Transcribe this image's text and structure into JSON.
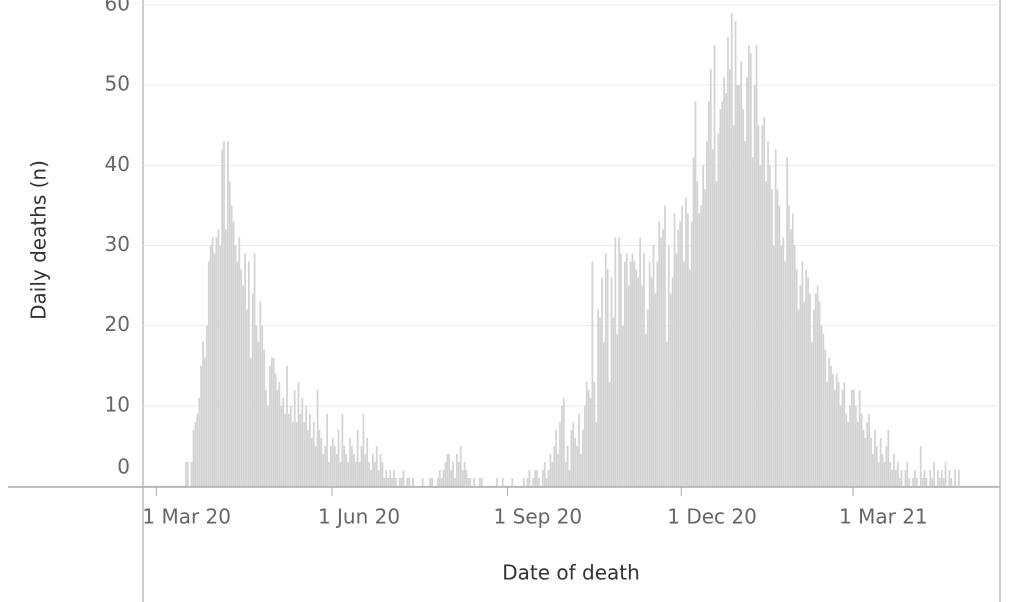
{
  "chart_data": {
    "type": "bar",
    "x_label": "Date of death",
    "y_label": "Daily deaths (n)",
    "color": "#d3d3d3",
    "grid": true,
    "xlim": [
      "2020-02-23",
      "2021-05-17"
    ],
    "xticks": [
      {
        "value": "2020-03-01",
        "label": "1 Mar 20"
      },
      {
        "value": "2020-06-01",
        "label": "1 Jun 20"
      },
      {
        "value": "2020-09-01",
        "label": "1 Sep 20"
      },
      {
        "value": "2020-12-01",
        "label": "1 Dec 20"
      },
      {
        "value": "2021-03-01",
        "label": "1 Mar 21"
      }
    ],
    "ylim": [
      0,
      60
    ],
    "yticks": [
      0,
      10,
      20,
      30,
      40,
      50,
      60
    ],
    "x": [
      "2020-03-16",
      "2020-03-17",
      "2020-03-18",
      "2020-03-19",
      "2020-03-20",
      "2020-03-21",
      "2020-03-22",
      "2020-03-23",
      "2020-03-24",
      "2020-03-25",
      "2020-03-26",
      "2020-03-27",
      "2020-03-28",
      "2020-03-29",
      "2020-03-30",
      "2020-03-31",
      "2020-04-01",
      "2020-04-02",
      "2020-04-03",
      "2020-04-04",
      "2020-04-05",
      "2020-04-06",
      "2020-04-07",
      "2020-04-08",
      "2020-04-09",
      "2020-04-10",
      "2020-04-11",
      "2020-04-12",
      "2020-04-13",
      "2020-04-14",
      "2020-04-15",
      "2020-04-16",
      "2020-04-17",
      "2020-04-18",
      "2020-04-19",
      "2020-04-20",
      "2020-04-21",
      "2020-04-22",
      "2020-04-23",
      "2020-04-24",
      "2020-04-25",
      "2020-04-26",
      "2020-04-27",
      "2020-04-28",
      "2020-04-29",
      "2020-04-30",
      "2020-05-01",
      "2020-05-02",
      "2020-05-03",
      "2020-05-04",
      "2020-05-05",
      "2020-05-06",
      "2020-05-07",
      "2020-05-08",
      "2020-05-09",
      "2020-05-10",
      "2020-05-11",
      "2020-05-12",
      "2020-05-13",
      "2020-05-14",
      "2020-05-15",
      "2020-05-16",
      "2020-05-17",
      "2020-05-18",
      "2020-05-19",
      "2020-05-20",
      "2020-05-21",
      "2020-05-22",
      "2020-05-23",
      "2020-05-24",
      "2020-05-25",
      "2020-05-26",
      "2020-05-27",
      "2020-05-28",
      "2020-05-29",
      "2020-05-30",
      "2020-05-31",
      "2020-06-01",
      "2020-06-02",
      "2020-06-03",
      "2020-06-04",
      "2020-06-05",
      "2020-06-06",
      "2020-06-07",
      "2020-06-08",
      "2020-06-09",
      "2020-06-10",
      "2020-06-11",
      "2020-06-12",
      "2020-06-13",
      "2020-06-14",
      "2020-06-15",
      "2020-06-16",
      "2020-06-17",
      "2020-06-18",
      "2020-06-19",
      "2020-06-20",
      "2020-06-21",
      "2020-06-22",
      "2020-06-23",
      "2020-06-24",
      "2020-06-25",
      "2020-06-26",
      "2020-06-27",
      "2020-06-28",
      "2020-06-29",
      "2020-06-30",
      "2020-07-01",
      "2020-07-02",
      "2020-07-03",
      "2020-07-04",
      "2020-07-05",
      "2020-07-06",
      "2020-07-07",
      "2020-07-08",
      "2020-07-09",
      "2020-07-10",
      "2020-07-11",
      "2020-07-12",
      "2020-07-13",
      "2020-07-14",
      "2020-07-15",
      "2020-07-16",
      "2020-07-17",
      "2020-07-18",
      "2020-07-19",
      "2020-07-20",
      "2020-07-21",
      "2020-07-22",
      "2020-07-23",
      "2020-07-24",
      "2020-07-25",
      "2020-07-26",
      "2020-07-27",
      "2020-07-28",
      "2020-07-29",
      "2020-07-30",
      "2020-07-31",
      "2020-08-01",
      "2020-08-02",
      "2020-08-03",
      "2020-08-04",
      "2020-08-05",
      "2020-08-06",
      "2020-08-07",
      "2020-08-08",
      "2020-08-09",
      "2020-08-10",
      "2020-08-11",
      "2020-08-12",
      "2020-08-13",
      "2020-08-14",
      "2020-08-15",
      "2020-08-16",
      "2020-08-17",
      "2020-08-18",
      "2020-08-19",
      "2020-08-20",
      "2020-08-21",
      "2020-08-22",
      "2020-08-23",
      "2020-08-24",
      "2020-08-25",
      "2020-08-26",
      "2020-08-27",
      "2020-08-28",
      "2020-08-29",
      "2020-08-30",
      "2020-08-31",
      "2020-09-01",
      "2020-09-02",
      "2020-09-03",
      "2020-09-04",
      "2020-09-05",
      "2020-09-06",
      "2020-09-07",
      "2020-09-08",
      "2020-09-09",
      "2020-09-10",
      "2020-09-11",
      "2020-09-12",
      "2020-09-13",
      "2020-09-14",
      "2020-09-15",
      "2020-09-16",
      "2020-09-17",
      "2020-09-18",
      "2020-09-19",
      "2020-09-20",
      "2020-09-21",
      "2020-09-22",
      "2020-09-23",
      "2020-09-24",
      "2020-09-25",
      "2020-09-26",
      "2020-09-27",
      "2020-09-28",
      "2020-09-29",
      "2020-09-30",
      "2020-10-01",
      "2020-10-02",
      "2020-10-03",
      "2020-10-04",
      "2020-10-05",
      "2020-10-06",
      "2020-10-07",
      "2020-10-08",
      "2020-10-09",
      "2020-10-10",
      "2020-10-11",
      "2020-10-12",
      "2020-10-13",
      "2020-10-14",
      "2020-10-15",
      "2020-10-16",
      "2020-10-17",
      "2020-10-18",
      "2020-10-19",
      "2020-10-20",
      "2020-10-21",
      "2020-10-22",
      "2020-10-23",
      "2020-10-24",
      "2020-10-25",
      "2020-10-26",
      "2020-10-27",
      "2020-10-28",
      "2020-10-29",
      "2020-10-30",
      "2020-10-31",
      "2020-11-01",
      "2020-11-02",
      "2020-11-03",
      "2020-11-04",
      "2020-11-05",
      "2020-11-06",
      "2020-11-07",
      "2020-11-08",
      "2020-11-09",
      "2020-11-10",
      "2020-11-11",
      "2020-11-12",
      "2020-11-13",
      "2020-11-14",
      "2020-11-15",
      "2020-11-16",
      "2020-11-17",
      "2020-11-18",
      "2020-11-19",
      "2020-11-20",
      "2020-11-21",
      "2020-11-22",
      "2020-11-23",
      "2020-11-24",
      "2020-11-25",
      "2020-11-26",
      "2020-11-27",
      "2020-11-28",
      "2020-11-29",
      "2020-11-30",
      "2020-12-01",
      "2020-12-02",
      "2020-12-03",
      "2020-12-04",
      "2020-12-05",
      "2020-12-06",
      "2020-12-07",
      "2020-12-08",
      "2020-12-09",
      "2020-12-10",
      "2020-12-11",
      "2020-12-12",
      "2020-12-13",
      "2020-12-14",
      "2020-12-15",
      "2020-12-16",
      "2020-12-17",
      "2020-12-18",
      "2020-12-19",
      "2020-12-20",
      "2020-12-21",
      "2020-12-22",
      "2020-12-23",
      "2020-12-24",
      "2020-12-25",
      "2020-12-26",
      "2020-12-27",
      "2020-12-28",
      "2020-12-29",
      "2020-12-30",
      "2020-12-31",
      "2021-01-01",
      "2021-01-02",
      "2021-01-03",
      "2021-01-04",
      "2021-01-05",
      "2021-01-06",
      "2021-01-07",
      "2021-01-08",
      "2021-01-09",
      "2021-01-10",
      "2021-01-11",
      "2021-01-12",
      "2021-01-13",
      "2021-01-14",
      "2021-01-15",
      "2021-01-16",
      "2021-01-17",
      "2021-01-18",
      "2021-01-19",
      "2021-01-20",
      "2021-01-21",
      "2021-01-22",
      "2021-01-23",
      "2021-01-24",
      "2021-01-25",
      "2021-01-26",
      "2021-01-27",
      "2021-01-28",
      "2021-01-29",
      "2021-01-30",
      "2021-01-31",
      "2021-02-01",
      "2021-02-02",
      "2021-02-03",
      "2021-02-04",
      "2021-02-05",
      "2021-02-06",
      "2021-02-07",
      "2021-02-08",
      "2021-02-09",
      "2021-02-10",
      "2021-02-11",
      "2021-02-12",
      "2021-02-13",
      "2021-02-14",
      "2021-02-15",
      "2021-02-16",
      "2021-02-17",
      "2021-02-18",
      "2021-02-19",
      "2021-02-20",
      "2021-02-21",
      "2021-02-22",
      "2021-02-23",
      "2021-02-24",
      "2021-02-25",
      "2021-02-26",
      "2021-02-27",
      "2021-02-28",
      "2021-03-01",
      "2021-03-02",
      "2021-03-03",
      "2021-03-04",
      "2021-03-05",
      "2021-03-06",
      "2021-03-07",
      "2021-03-08",
      "2021-03-09",
      "2021-03-10",
      "2021-03-11",
      "2021-03-12",
      "2021-03-13",
      "2021-03-14",
      "2021-03-15",
      "2021-03-16",
      "2021-03-17",
      "2021-03-18",
      "2021-03-19",
      "2021-03-20",
      "2021-03-21",
      "2021-03-22",
      "2021-03-23",
      "2021-03-24",
      "2021-03-25",
      "2021-03-26",
      "2021-03-27",
      "2021-03-28",
      "2021-03-29",
      "2021-03-30",
      "2021-03-31",
      "2021-04-01",
      "2021-04-02",
      "2021-04-03",
      "2021-04-04",
      "2021-04-05",
      "2021-04-06",
      "2021-04-07",
      "2021-04-08",
      "2021-04-09",
      "2021-04-10",
      "2021-04-11",
      "2021-04-12",
      "2021-04-13",
      "2021-04-14",
      "2021-04-15",
      "2021-04-16",
      "2021-04-17",
      "2021-04-18",
      "2021-04-19",
      "2021-04-20",
      "2021-04-21",
      "2021-04-22",
      "2021-04-23",
      "2021-04-24",
      "2021-04-25"
    ],
    "values": [
      3,
      3,
      0,
      3,
      7,
      8,
      9,
      11,
      15,
      18,
      16,
      20,
      28,
      30,
      31,
      29,
      31,
      32,
      30,
      42,
      43,
      32,
      43,
      38,
      35,
      33,
      30,
      28,
      31,
      27,
      25,
      29,
      22,
      28,
      16,
      24,
      29,
      20,
      18,
      23,
      20,
      17,
      12,
      10,
      15,
      16,
      16,
      14,
      12,
      13,
      10,
      11,
      9,
      15,
      9,
      10,
      8,
      12,
      8,
      13,
      9,
      11,
      8,
      10,
      7,
      9,
      6,
      8,
      5,
      12,
      7,
      6,
      4,
      5,
      9,
      3,
      5,
      6,
      5,
      4,
      7,
      3,
      9,
      5,
      4,
      3,
      6,
      5,
      4,
      3,
      7,
      3,
      5,
      9,
      4,
      6,
      3,
      2,
      4,
      3,
      5,
      2,
      4,
      3,
      1,
      2,
      1,
      2,
      1,
      2,
      1,
      0,
      1,
      1,
      2,
      0,
      1,
      1,
      0,
      1,
      0,
      0,
      0,
      0,
      1,
      0,
      0,
      0,
      1,
      1,
      0,
      0,
      1,
      2,
      1,
      2,
      3,
      4,
      4,
      2,
      3,
      1,
      4,
      3,
      5,
      2,
      3,
      2,
      1,
      1,
      0,
      1,
      0,
      0,
      1,
      1,
      0,
      0,
      0,
      0,
      0,
      0,
      0,
      1,
      0,
      0,
      1,
      0,
      0,
      0,
      0,
      1,
      0,
      0,
      0,
      0,
      0,
      1,
      0,
      1,
      2,
      0,
      1,
      2,
      2,
      1,
      0,
      2,
      3,
      1,
      2,
      4,
      3,
      5,
      7,
      4,
      8,
      10,
      11,
      3,
      5,
      2,
      7,
      8,
      6,
      5,
      9,
      4,
      7,
      10,
      13,
      12,
      11,
      28,
      13,
      8,
      22,
      21,
      26,
      18,
      29,
      27,
      13,
      26,
      21,
      31,
      19,
      31,
      29,
      20,
      28,
      29,
      25,
      28,
      29,
      28,
      27,
      26,
      31,
      25,
      29,
      19,
      22,
      28,
      26,
      30,
      24,
      28,
      33,
      31,
      32,
      35,
      18,
      30,
      24,
      26,
      34,
      29,
      32,
      33,
      35,
      28,
      36,
      34,
      27,
      33,
      41,
      48,
      38,
      34,
      35,
      40,
      37,
      43,
      48,
      52,
      42,
      55,
      38,
      44,
      47,
      48,
      51,
      49,
      56,
      52,
      59,
      45,
      58,
      50,
      50,
      53,
      47,
      43,
      51,
      55,
      54,
      41,
      50,
      55,
      45,
      40,
      45,
      46,
      38,
      43,
      40,
      37,
      30,
      42,
      37,
      35,
      30,
      31,
      28,
      41,
      35,
      32,
      34,
      30,
      27,
      22,
      25,
      28,
      23,
      27,
      26,
      24,
      18,
      22,
      24,
      25,
      23,
      20,
      19,
      17,
      13,
      16,
      15,
      14,
      12,
      14,
      13,
      10,
      12,
      13,
      9,
      8,
      10,
      12,
      12,
      10,
      8,
      12,
      9,
      7,
      6,
      8,
      9,
      6,
      4,
      7,
      5,
      3,
      6,
      4,
      3,
      5,
      7,
      3,
      2,
      4,
      2,
      3,
      1,
      2,
      0,
      2,
      3,
      1,
      0,
      1,
      2,
      1,
      0,
      5,
      1,
      2,
      1,
      0,
      2,
      1,
      3,
      0,
      2,
      1,
      2,
      1,
      3,
      0,
      2,
      1,
      0,
      2,
      0,
      2
    ]
  }
}
